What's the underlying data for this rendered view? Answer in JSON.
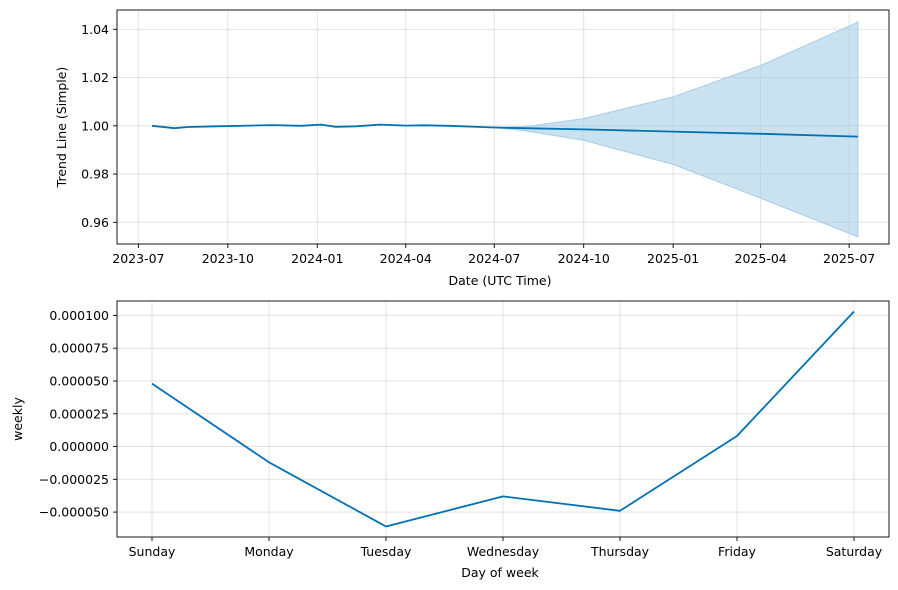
{
  "chart_data": [
    {
      "type": "line",
      "xlabel": "Date (UTC Time)",
      "ylabel": "Trend Line (Simple)",
      "x_ticks": [
        "2023-07",
        "2023-10",
        "2024-01",
        "2024-04",
        "2024-07",
        "2024-10",
        "2025-01",
        "2025-04",
        "2025-07"
      ],
      "y_ticks": [
        "0.96",
        "0.98",
        "1.00",
        "1.02",
        "1.04"
      ],
      "ylim": [
        0.951,
        1.048
      ],
      "grid": true,
      "colors": {
        "line": "#0072B2",
        "band": "#a6cde6"
      },
      "series": [
        {
          "values_x": [
            "2023-07-15",
            "2023-08-07",
            "2023-08-21",
            "2023-09-20",
            "2023-11-15",
            "2023-12-15",
            "2024-01-05",
            "2024-01-20",
            "2024-02-10",
            "2024-03-05",
            "2024-04-01",
            "2024-04-20",
            "2024-05-15",
            "2024-07-01",
            "2024-08-01",
            "2024-10-01",
            "2025-01-01",
            "2025-04-01",
            "2025-07-10"
          ],
          "values_y": [
            1.0,
            0.999,
            0.9995,
            0.9998,
            1.0003,
            1.0,
            1.0005,
            0.9996,
            0.9998,
            1.0005,
            1.0001,
            1.0002,
            1.0,
            0.9993,
            0.999,
            0.9985,
            0.9976,
            0.9967,
            0.9955
          ]
        }
      ],
      "band": {
        "x": [
          "2024-07-01",
          "2024-08-01",
          "2024-10-01",
          "2025-01-01",
          "2025-04-01",
          "2025-07-10"
        ],
        "upper": [
          0.9993,
          0.9996,
          1.003,
          1.012,
          1.025,
          1.043
        ],
        "lower": [
          0.9993,
          0.998,
          0.994,
          0.984,
          0.97,
          0.954
        ]
      }
    },
    {
      "type": "line",
      "xlabel": "Day of week",
      "ylabel": "weekly",
      "categories": [
        "Sunday",
        "Monday",
        "Tuesday",
        "Wednesday",
        "Thursday",
        "Friday",
        "Saturday"
      ],
      "y_ticks": [
        "−0.000050",
        "−0.000025",
        "0.000000",
        "0.000025",
        "0.000050",
        "0.000075",
        "0.000100"
      ],
      "ylim": [
        -6.9e-05,
        0.000111
      ],
      "grid": true,
      "colors": {
        "line": "#0072B2"
      },
      "series": [
        {
          "values": [
            4.8e-05,
            -1.2e-05,
            -6.1e-05,
            -3.8e-05,
            -4.9e-05,
            8e-06,
            0.000103
          ]
        }
      ]
    }
  ]
}
